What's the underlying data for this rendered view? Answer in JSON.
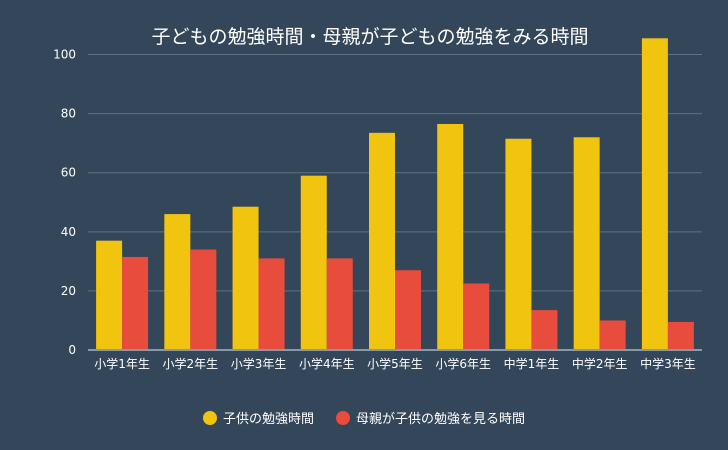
{
  "chart_data": {
    "type": "bar",
    "title": "子どもの勉強時間・母親が子どもの勉強をみる時間",
    "categories": [
      "小学1年生",
      "小学2年生",
      "小学3年生",
      "小学4年生",
      "小学5年生",
      "小学6年生",
      "中学1年生",
      "中学2年生",
      "中学3年生"
    ],
    "series": [
      {
        "name": "子供の勉強時間",
        "color": "#f1c40f",
        "values": [
          37,
          46,
          48.5,
          59,
          73.5,
          76.5,
          71.5,
          72,
          105.5
        ]
      },
      {
        "name": "母親が子供の勉強を見る時間",
        "color": "#e74c3c",
        "values": [
          31.5,
          34,
          31,
          31,
          27,
          22.5,
          13.5,
          10,
          9.5
        ]
      }
    ],
    "ylim": [
      0,
      110
    ],
    "yticks": [
      0,
      20,
      40,
      60,
      80,
      100
    ],
    "grid": true,
    "legend_position": "bottom-center",
    "xlabel": "",
    "ylabel": ""
  },
  "colors": {
    "background": "#34465a",
    "gridline": "#5e7083",
    "axis": "#8a99a8"
  }
}
